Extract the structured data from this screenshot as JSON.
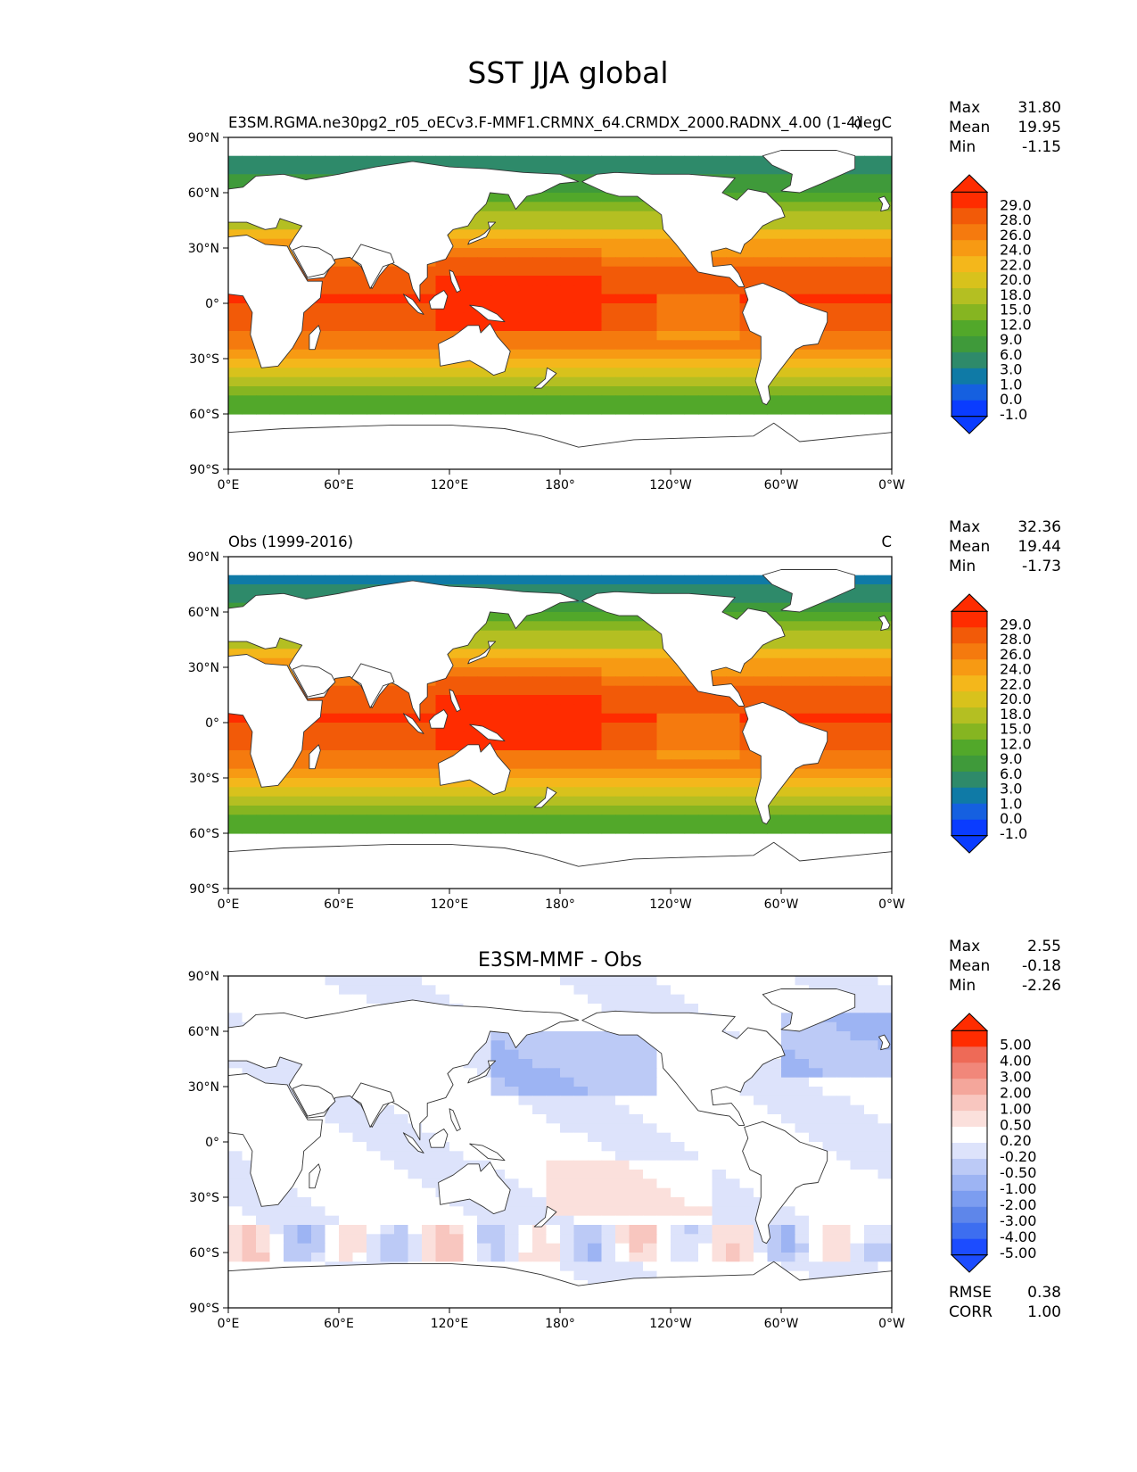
{
  "figure_title": "SST JJA global",
  "colors": {
    "ocean_seq": [
      "#0a3cff",
      "#1560e0",
      "#0f7aa6",
      "#2e8a6a",
      "#3f9a3a",
      "#52a82a",
      "#86b521",
      "#b4bf22",
      "#d8c21c",
      "#f4b71b",
      "#f79a13",
      "#f57a0e",
      "#f25a08",
      "#ff2c00"
    ],
    "diff_seq": [
      "#1c4cff",
      "#3d6ef0",
      "#5e86ea",
      "#7c9df0",
      "#9db4f3",
      "#bccaf6",
      "#dde3fb",
      "#ffffff",
      "#fbe0dc",
      "#f8c6bf",
      "#f4a69b",
      "#f1877a",
      "#ee6a57",
      "#ff2c00"
    ],
    "land": "#ffffff",
    "coast": "#333333"
  },
  "axes": {
    "x_ticks": [
      "0°E",
      "60°E",
      "120°E",
      "180°",
      "120°W",
      "60°W",
      "0°W"
    ],
    "y_ticks": [
      "90°N",
      "60°N",
      "30°N",
      "0°",
      "30°S",
      "60°S",
      "90°S"
    ]
  },
  "panels": [
    {
      "left_title": "E3SM.RGMA.ne30pg2_r05_oECv3.F-MMF1.CRMNX_64.CRMDX_2000.RADNX_4.00 (1-4)",
      "center_title": "",
      "right_title": "degC",
      "stats": [
        {
          "label": "Max",
          "value": "31.80"
        },
        {
          "label": "Mean",
          "value": "19.95"
        },
        {
          "label": "Min",
          "value": "-1.15"
        }
      ],
      "colorbar": [
        "29.0",
        "28.0",
        "26.0",
        "24.0",
        "22.0",
        "20.0",
        "18.0",
        "15.0",
        "12.0",
        "9.0",
        "6.0",
        "3.0",
        "1.0",
        "0.0",
        "-1.0"
      ],
      "scheme": "ocean_seq"
    },
    {
      "left_title": "Obs (1999-2016)",
      "center_title": "",
      "right_title": "C",
      "stats": [
        {
          "label": "Max",
          "value": "32.36"
        },
        {
          "label": "Mean",
          "value": "19.44"
        },
        {
          "label": "Min",
          "value": "-1.73"
        }
      ],
      "colorbar": [
        "29.0",
        "28.0",
        "26.0",
        "24.0",
        "22.0",
        "20.0",
        "18.0",
        "15.0",
        "12.0",
        "9.0",
        "6.0",
        "3.0",
        "1.0",
        "0.0",
        "-1.0"
      ],
      "scheme": "ocean_seq"
    },
    {
      "left_title": "",
      "center_title": "E3SM-MMF - Obs",
      "right_title": "",
      "stats": [
        {
          "label": "Max",
          "value": "2.55"
        },
        {
          "label": "Mean",
          "value": "-0.18"
        },
        {
          "label": "Min",
          "value": "-2.26"
        }
      ],
      "colorbar": [
        "5.00",
        "4.00",
        "3.00",
        "2.00",
        "1.00",
        "0.50",
        "0.20",
        "-0.20",
        "-0.50",
        "-1.00",
        "-2.00",
        "-3.00",
        "-4.00",
        "-5.00"
      ],
      "scheme": "diff_seq",
      "metrics": [
        {
          "label": "RMSE",
          "value": "0.38"
        },
        {
          "label": "CORR",
          "value": "1.00"
        }
      ]
    }
  ],
  "chart_data": [
    {
      "type": "heatmap",
      "title": "E3SM.RGMA.ne30pg2_r05_oECv3.F-MMF1.CRMNX_64.CRMDX_2000.RADNX_4.00 (1-4)",
      "units": "degC",
      "xlim": [
        0,
        360
      ],
      "ylim": [
        -90,
        90
      ],
      "levels": [
        -1.0,
        0.0,
        1.0,
        3.0,
        6.0,
        9.0,
        12.0,
        15.0,
        18.0,
        20.0,
        22.0,
        24.0,
        26.0,
        28.0,
        29.0
      ],
      "max": 31.8,
      "mean": 19.95,
      "min": -1.15
    },
    {
      "type": "heatmap",
      "title": "Obs (1999-2016)",
      "units": "C",
      "xlim": [
        0,
        360
      ],
      "ylim": [
        -90,
        90
      ],
      "levels": [
        -1.0,
        0.0,
        1.0,
        3.0,
        6.0,
        9.0,
        12.0,
        15.0,
        18.0,
        20.0,
        22.0,
        24.0,
        26.0,
        28.0,
        29.0
      ],
      "max": 32.36,
      "mean": 19.44,
      "min": -1.73
    },
    {
      "type": "heatmap",
      "title": "E3SM-MMF - Obs",
      "xlim": [
        0,
        360
      ],
      "ylim": [
        -90,
        90
      ],
      "levels": [
        -5.0,
        -4.0,
        -3.0,
        -2.0,
        -1.0,
        -0.5,
        -0.2,
        0.2,
        0.5,
        1.0,
        2.0,
        3.0,
        4.0,
        5.0
      ],
      "max": 2.55,
      "mean": -0.18,
      "min": -2.26,
      "rmse": 0.38,
      "corr": 1.0
    }
  ]
}
